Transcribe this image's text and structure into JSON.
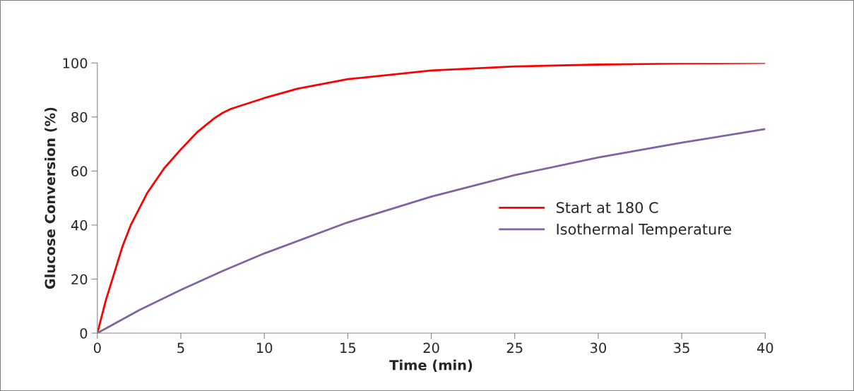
{
  "chart_data": {
    "type": "line",
    "xlabel": "Time (min)",
    "ylabel": "Glucose Conversion (%)",
    "xlim": [
      0,
      40
    ],
    "xticks": [
      0,
      5,
      10,
      15,
      20,
      25,
      30,
      35,
      40
    ],
    "ylim": [
      0,
      100
    ],
    "yticks": [
      0,
      20,
      40,
      60,
      80,
      100
    ],
    "grid": false,
    "legend": "right",
    "marker": "none",
    "line_style": "solid",
    "series": [
      {
        "name": "Start at 180 C",
        "color": "#ff0000",
        "x": [
          0,
          0.5,
          1,
          1.5,
          2,
          3,
          4,
          5,
          6,
          7,
          7.5,
          8,
          10,
          12,
          15,
          20,
          25,
          30,
          35,
          40
        ],
        "values": [
          0,
          12,
          22,
          32,
          40,
          52,
          61,
          68,
          74.5,
          79.5,
          81.5,
          83,
          87,
          90.5,
          94,
          97.2,
          98.7,
          99.4,
          99.8,
          100
        ]
      },
      {
        "name": "Isothermal Temperature",
        "color": "#8064a2",
        "x": [
          0,
          2.5,
          5,
          7.5,
          10,
          15,
          20,
          25,
          30,
          35,
          40
        ],
        "values": [
          0,
          8.5,
          16,
          23,
          29.5,
          41,
          50.5,
          58.5,
          65,
          70.5,
          75.5
        ]
      }
    ]
  }
}
